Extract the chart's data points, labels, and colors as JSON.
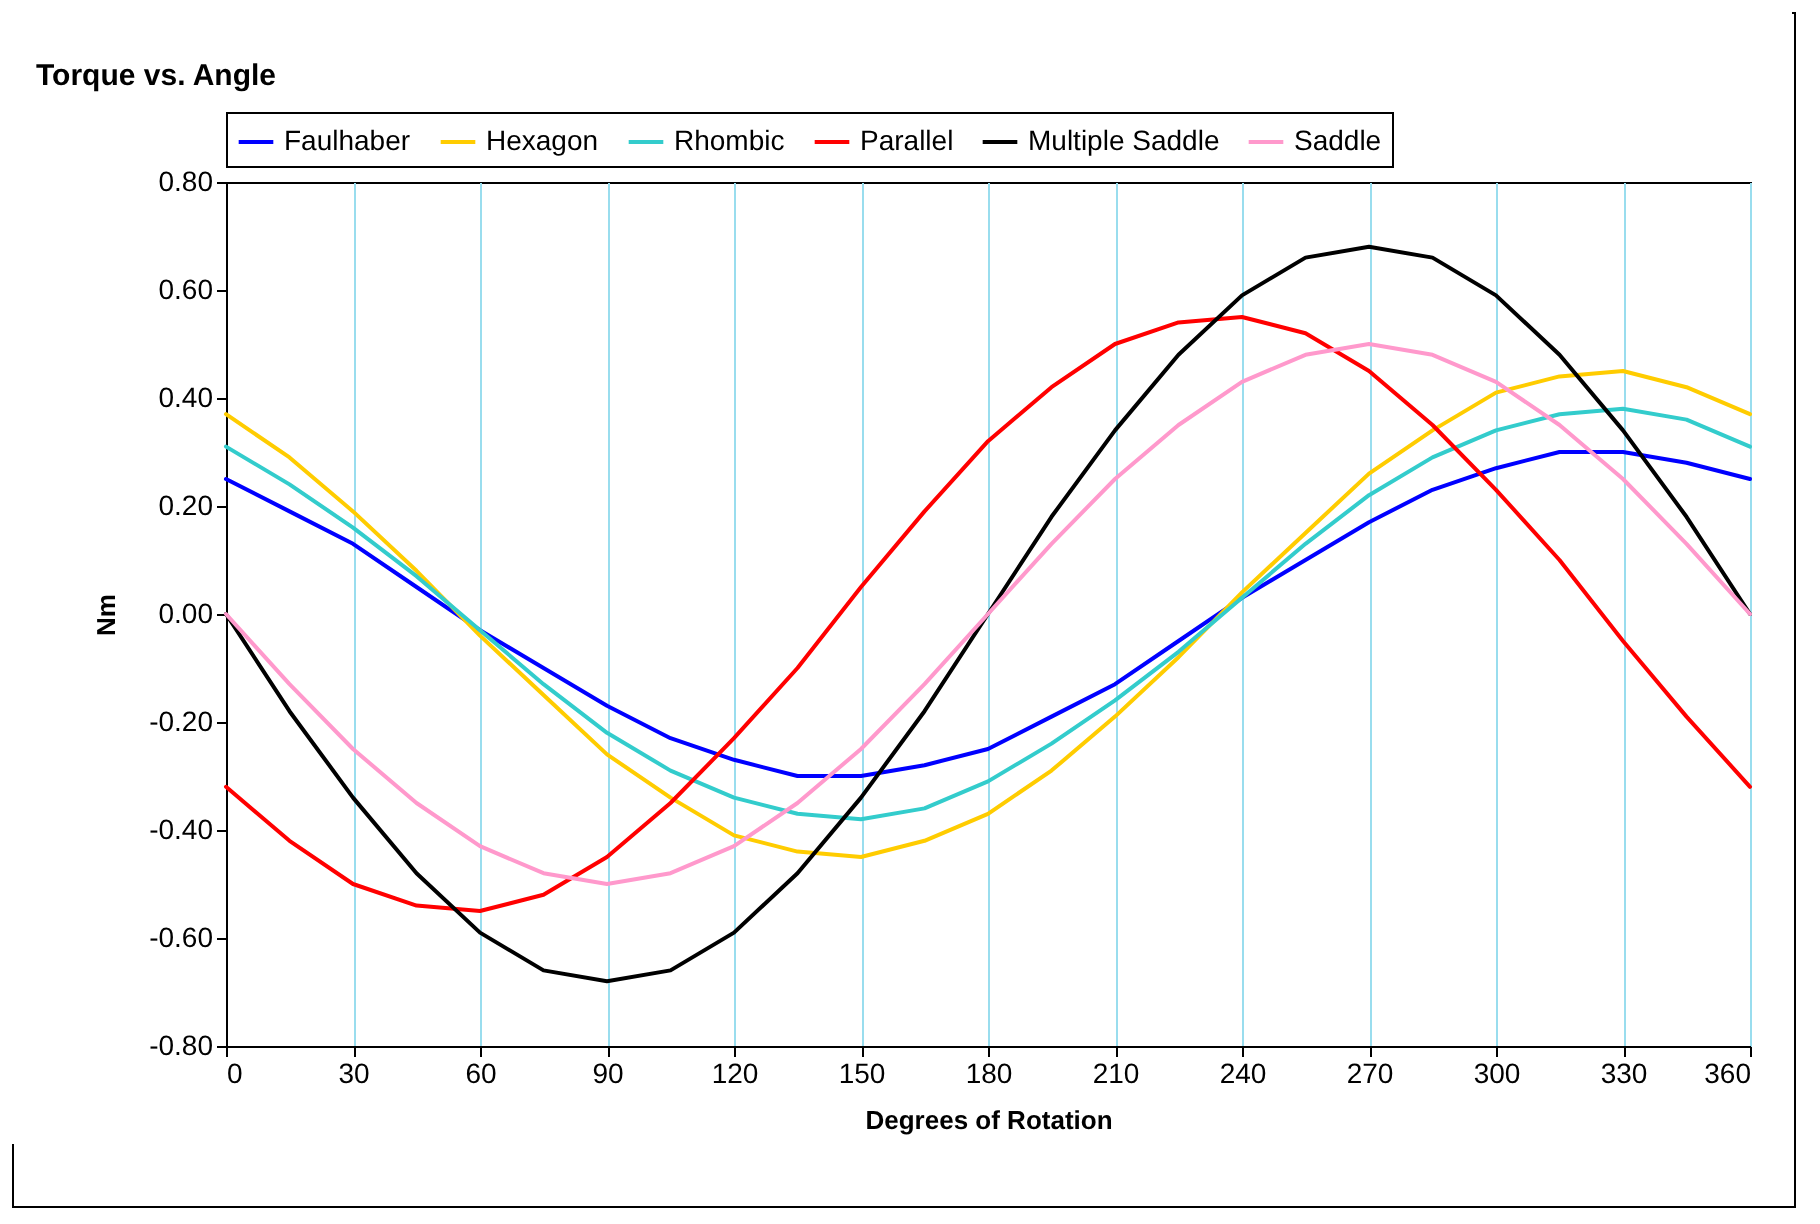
{
  "chart_data": {
    "type": "line",
    "title": "Torque vs. Angle",
    "xlabel": "Degrees of Rotation",
    "ylabel": "Nm",
    "x": [
      0,
      15,
      30,
      45,
      60,
      75,
      90,
      105,
      120,
      135,
      150,
      165,
      180,
      195,
      210,
      225,
      240,
      255,
      270,
      285,
      300,
      315,
      330,
      345,
      360
    ],
    "series": [
      {
        "name": "Faulhaber",
        "color": "#0000ff",
        "values": [
          0.25,
          0.19,
          0.13,
          0.05,
          -0.03,
          -0.1,
          -0.17,
          -0.23,
          -0.27,
          -0.3,
          -0.3,
          -0.28,
          -0.25,
          -0.19,
          -0.13,
          -0.05,
          0.03,
          0.1,
          0.17,
          0.23,
          0.27,
          0.3,
          0.3,
          0.28,
          0.25
        ]
      },
      {
        "name": "Hexagon",
        "color": "#ffcc00",
        "values": [
          0.37,
          0.29,
          0.19,
          0.08,
          -0.04,
          -0.15,
          -0.26,
          -0.34,
          -0.41,
          -0.44,
          -0.45,
          -0.42,
          -0.37,
          -0.29,
          -0.19,
          -0.08,
          0.04,
          0.15,
          0.26,
          0.34,
          0.41,
          0.44,
          0.45,
          0.42,
          0.37
        ]
      },
      {
        "name": "Rhombic",
        "color": "#33cccc",
        "values": [
          0.31,
          0.24,
          0.16,
          0.07,
          -0.03,
          -0.13,
          -0.22,
          -0.29,
          -0.34,
          -0.37,
          -0.38,
          -0.36,
          -0.31,
          -0.24,
          -0.16,
          -0.07,
          0.03,
          0.13,
          0.22,
          0.29,
          0.34,
          0.37,
          0.38,
          0.36,
          0.31
        ]
      },
      {
        "name": "Parallel",
        "color": "#ff0000",
        "values": [
          -0.32,
          -0.42,
          -0.5,
          -0.54,
          -0.55,
          -0.52,
          -0.45,
          -0.35,
          -0.23,
          -0.1,
          0.05,
          0.19,
          0.32,
          0.42,
          0.5,
          0.54,
          0.55,
          0.52,
          0.45,
          0.35,
          0.23,
          0.1,
          -0.05,
          -0.19,
          -0.32
        ]
      },
      {
        "name": "Multiple Saddle",
        "color": "#000000",
        "values": [
          0,
          -0.18,
          -0.34,
          -0.48,
          -0.59,
          -0.66,
          -0.68,
          -0.66,
          -0.59,
          -0.48,
          -0.34,
          -0.18,
          0,
          0.18,
          0.34,
          0.48,
          0.59,
          0.66,
          0.68,
          0.66,
          0.59,
          0.48,
          0.34,
          0.18,
          0
        ]
      },
      {
        "name": "Saddle",
        "color": "#ff99cc",
        "values": [
          0,
          -0.13,
          -0.25,
          -0.35,
          -0.43,
          -0.48,
          -0.5,
          -0.48,
          -0.43,
          -0.35,
          -0.25,
          -0.13,
          0,
          0.13,
          0.25,
          0.35,
          0.43,
          0.48,
          0.5,
          0.48,
          0.43,
          0.35,
          0.25,
          0.13,
          0
        ]
      }
    ],
    "xlim": [
      0,
      360
    ],
    "xticks": [
      0,
      30,
      60,
      90,
      120,
      150,
      180,
      210,
      240,
      270,
      300,
      330,
      360
    ],
    "ylim": [
      -0.8,
      0.8
    ],
    "yticks": [
      {
        "value": -0.8,
        "label": "-0.80"
      },
      {
        "value": -0.6,
        "label": "-0.60"
      },
      {
        "value": -0.4,
        "label": "-0.40"
      },
      {
        "value": -0.2,
        "label": "-0.20"
      },
      {
        "value": 0,
        "label": "0.00"
      },
      {
        "value": 0.2,
        "label": "0.20"
      },
      {
        "value": 0.4,
        "label": "0.40"
      },
      {
        "value": 0.6,
        "label": "0.60"
      },
      {
        "value": 0.8,
        "label": "0.80"
      }
    ],
    "grid": "x",
    "legend": "top",
    "marker": "none",
    "line_style": "solid"
  }
}
